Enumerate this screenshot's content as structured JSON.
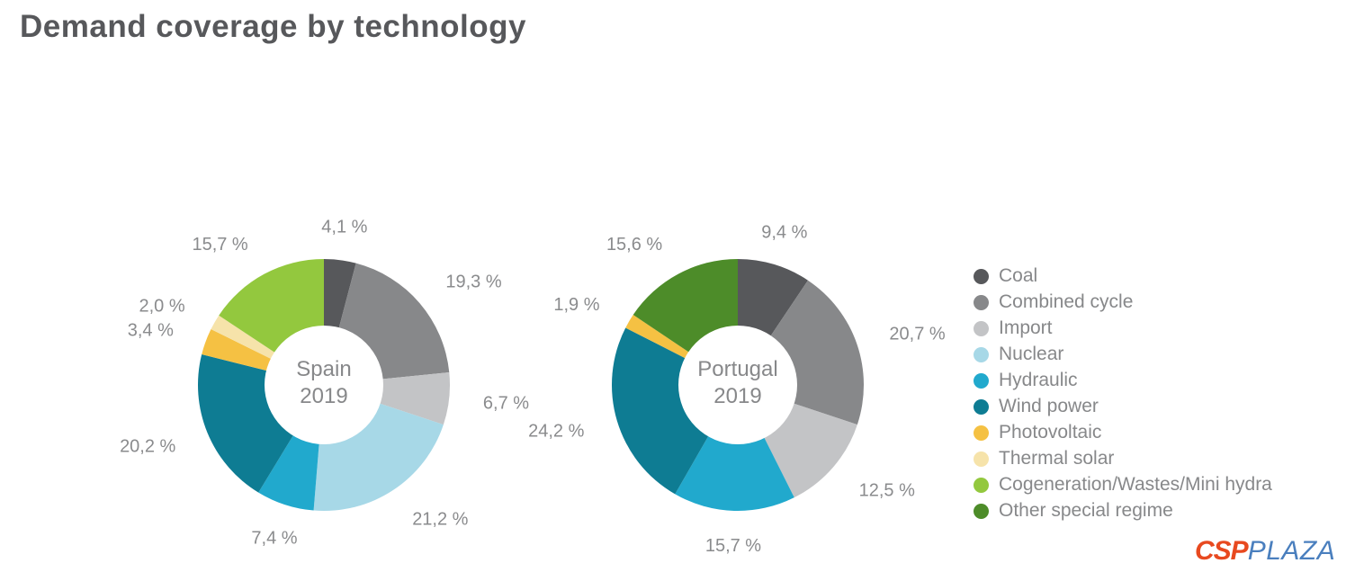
{
  "title": "Demand coverage by technology",
  "legend": {
    "items": [
      {
        "label": "Coal",
        "color": "#57585b"
      },
      {
        "label": "Combined cycle",
        "color": "#87888a"
      },
      {
        "label": "Import",
        "color": "#c3c4c6"
      },
      {
        "label": "Nuclear",
        "color": "#a7d8e7"
      },
      {
        "label": "Hydraulic",
        "color": "#21a9cd"
      },
      {
        "label": "Wind power",
        "color": "#0e7c93"
      },
      {
        "label": "Photovoltaic",
        "color": "#f5c143"
      },
      {
        "label": "Thermal solar",
        "color": "#f6e3aa"
      },
      {
        "label": "Cogeneration/Wastes/Mini hydra",
        "color": "#93c83e"
      },
      {
        "label": "Other special regime",
        "color": "#4d8c29"
      }
    ]
  },
  "chart_data": [
    {
      "type": "pie",
      "title": "Spain 2019",
      "center_line1": "Spain",
      "center_line2": "2019",
      "categories": [
        "Coal",
        "Combined cycle",
        "Import",
        "Nuclear",
        "Hydraulic",
        "Wind power",
        "Photovoltaic",
        "Thermal solar",
        "Cogeneration/Wastes/Mini hydra"
      ],
      "values": [
        4.1,
        19.3,
        6.7,
        21.2,
        7.4,
        20.2,
        3.4,
        2.0,
        15.7
      ],
      "labels": [
        "4,1 %",
        "19,3 %",
        "6,7 %",
        "21,2 %",
        "7,4 %",
        "20,2 %",
        "3,4 %",
        "2,0 %",
        "15,7 %"
      ],
      "colors": [
        "#57585b",
        "#87888a",
        "#c3c4c6",
        "#a7d8e7",
        "#21a9cd",
        "#0e7c93",
        "#f5c143",
        "#f6e3aa",
        "#93c83e"
      ]
    },
    {
      "type": "pie",
      "title": "Portugal 2019",
      "center_line1": "Portugal",
      "center_line2": "2019",
      "categories": [
        "Coal",
        "Combined cycle",
        "Import",
        "Hydraulic",
        "Wind power",
        "Photovoltaic",
        "Other special regime"
      ],
      "values": [
        9.4,
        20.7,
        12.5,
        15.7,
        24.2,
        1.9,
        15.6
      ],
      "labels": [
        "9,4 %",
        "20,7 %",
        "12,5 %",
        "15,7 %",
        "24,2 %",
        "1,9 %",
        "15,6 %"
      ],
      "colors": [
        "#57585b",
        "#87888a",
        "#c3c4c6",
        "#21a9cd",
        "#0e7c93",
        "#f5c143",
        "#4d8c29"
      ]
    }
  ],
  "watermark": {
    "csp": "CSP",
    "plaza": "PLAZA"
  }
}
